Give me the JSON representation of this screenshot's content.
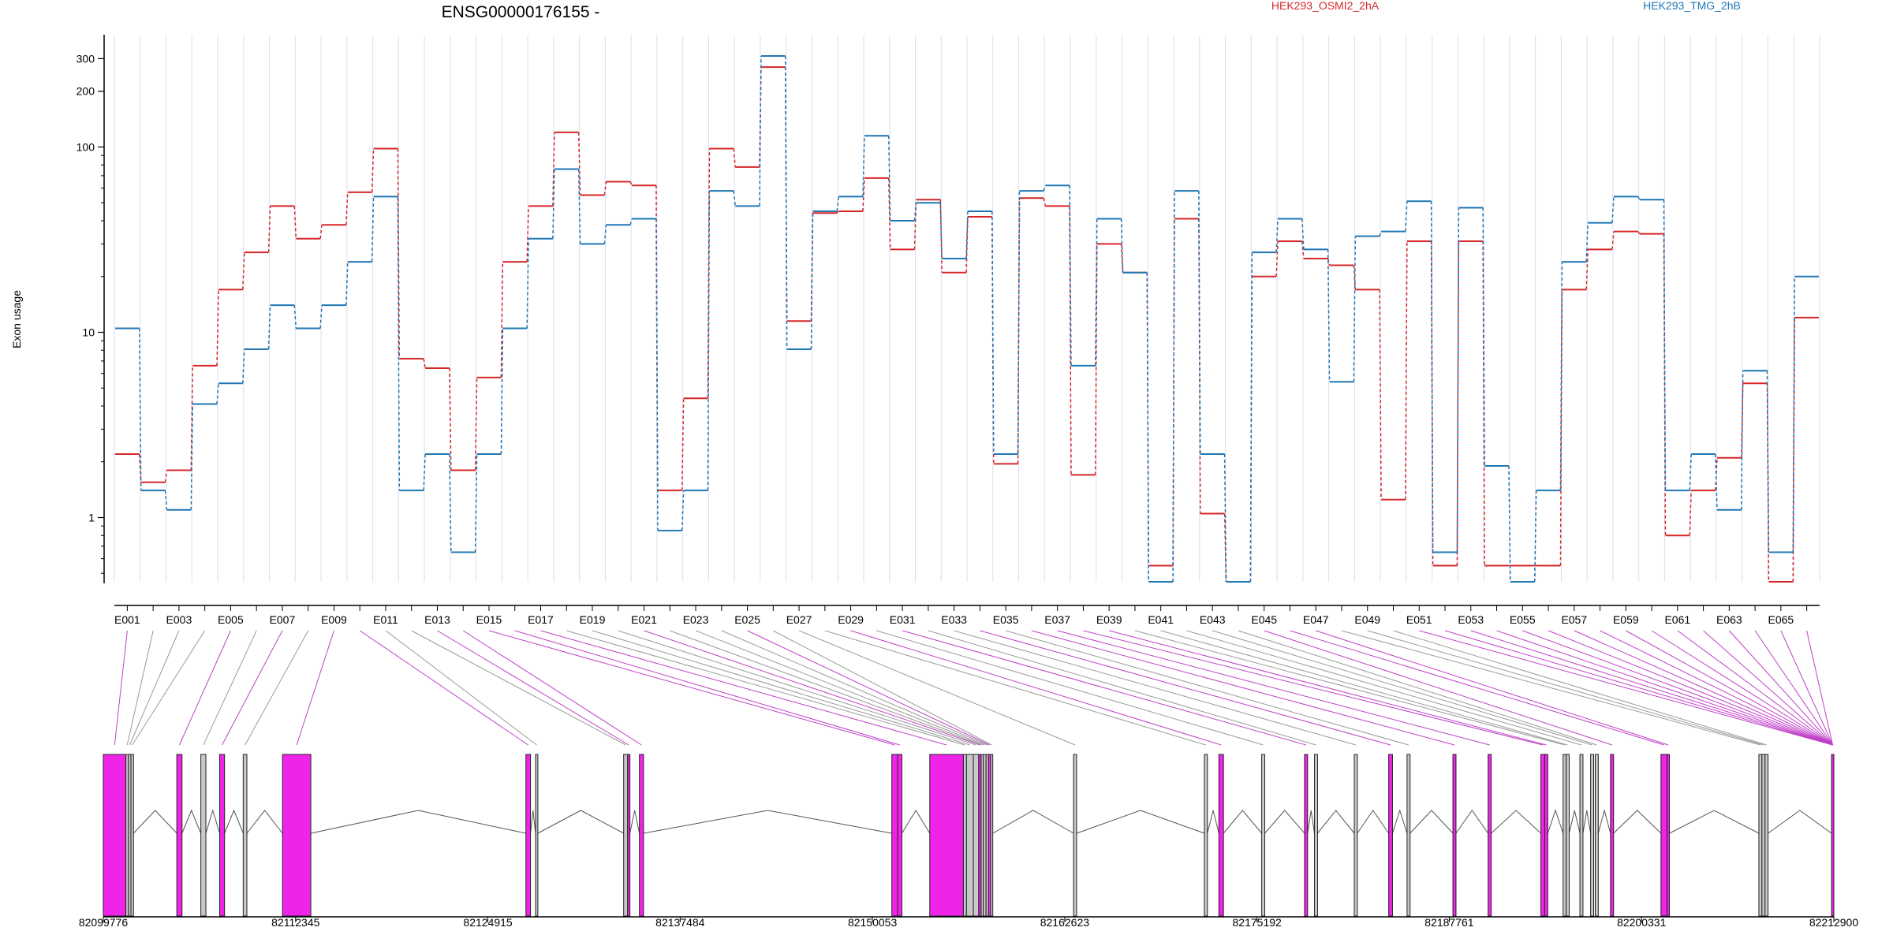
{
  "title": "ENSG00000176155 -",
  "ylabel": "Exon usage",
  "chart_data": {
    "type": "line",
    "title": "ENSG00000176155 -",
    "ylabel": "Exon usage",
    "yscale": "log",
    "ylim": [
      0.45,
      400
    ],
    "yticks": [
      1,
      10,
      100,
      200,
      300
    ],
    "legend_placement": "top",
    "x_tick_labels": [
      "E001",
      "E003",
      "E005",
      "E007",
      "E009",
      "E011",
      "E013",
      "E015",
      "E017",
      "E019",
      "E021",
      "E023",
      "E025",
      "E027",
      "E029",
      "E031",
      "E033",
      "E035",
      "E037",
      "E039",
      "E041",
      "E043",
      "E045",
      "E047",
      "E049",
      "E051",
      "E053",
      "E055",
      "E057",
      "E059",
      "E061",
      "E063",
      "E065"
    ],
    "series": [
      {
        "name": "HEK293_OSMI2_2hA",
        "color": "#d62728",
        "values": [
          2.2,
          1.55,
          1.8,
          6.6,
          17,
          27,
          48,
          32,
          38,
          57,
          98,
          7.2,
          6.4,
          1.8,
          5.7,
          24,
          48,
          120,
          55,
          65,
          62,
          1.4,
          4.4,
          98,
          78,
          270,
          11.5,
          44,
          45,
          68,
          28,
          52,
          21,
          42,
          1.95,
          53,
          48,
          1.7,
          30,
          21,
          0.55,
          41,
          1.05,
          0.45,
          20,
          31,
          25,
          23,
          17,
          1.25,
          31,
          0.55,
          31,
          0.55,
          0.55,
          0.55,
          17,
          28,
          35,
          34,
          0.8,
          1.4,
          2.1,
          5.3,
          0.45,
          12
        ]
      },
      {
        "name": "HEK293_TMG_2hB",
        "color": "#1f77b4",
        "values": [
          10.5,
          1.4,
          1.1,
          4.1,
          5.3,
          8.1,
          14,
          10.5,
          14,
          24,
          54,
          1.4,
          2.2,
          0.65,
          2.2,
          10.5,
          32,
          76,
          30,
          38,
          41,
          0.85,
          1.4,
          58,
          48,
          310,
          8.1,
          45,
          54,
          115,
          40,
          50,
          25,
          45,
          2.2,
          58,
          62,
          6.6,
          41,
          21,
          0.45,
          58,
          2.2,
          0.45,
          27,
          41,
          28,
          5.4,
          33,
          35,
          51,
          0.65,
          47,
          1.9,
          0.45,
          1.4,
          24,
          39,
          54,
          52,
          1.4,
          2.2,
          1.1,
          6.2,
          0.65,
          20
        ]
      }
    ],
    "gene_model": {
      "x_tick_labels": [
        "82099776",
        "82112345",
        "82124915",
        "82137484",
        "82150053",
        "82162623",
        "82175192",
        "82187761",
        "82200331",
        "82212900"
      ],
      "xlim": [
        82099776,
        82212900
      ],
      "exon_bins": [
        {
          "start": 82099776,
          "end": 82101250,
          "highlight": true
        },
        {
          "start": 82101250,
          "end": 82101420,
          "highlight": false
        },
        {
          "start": 82101420,
          "end": 82101580,
          "highlight": false
        },
        {
          "start": 82101580,
          "end": 82101750,
          "highlight": false
        },
        {
          "start": 82104580,
          "end": 82104920,
          "highlight": true
        },
        {
          "start": 82106150,
          "end": 82106480,
          "highlight": false
        },
        {
          "start": 82107380,
          "end": 82107700,
          "highlight": true
        },
        {
          "start": 82108920,
          "end": 82109160,
          "highlight": false
        },
        {
          "start": 82111490,
          "end": 82113340,
          "highlight": true
        },
        {
          "start": 82127400,
          "end": 82127700,
          "highlight": true
        },
        {
          "start": 82128030,
          "end": 82128180,
          "highlight": false
        },
        {
          "start": 82133790,
          "end": 82134050,
          "highlight": false
        },
        {
          "start": 82134050,
          "end": 82134200,
          "highlight": true
        },
        {
          "start": 82134820,
          "end": 82135090,
          "highlight": true
        },
        {
          "start": 82151320,
          "end": 82151700,
          "highlight": true
        },
        {
          "start": 82151700,
          "end": 82151980,
          "highlight": true
        },
        {
          "start": 82153800,
          "end": 82156000,
          "highlight": true
        },
        {
          "start": 82156000,
          "end": 82156200,
          "highlight": false
        },
        {
          "start": 82156200,
          "end": 82156650,
          "highlight": false
        },
        {
          "start": 82156650,
          "end": 82157000,
          "highlight": false
        },
        {
          "start": 82157000,
          "end": 82157160,
          "highlight": true
        },
        {
          "start": 82157160,
          "end": 82157300,
          "highlight": false
        },
        {
          "start": 82157300,
          "end": 82157480,
          "highlight": false
        },
        {
          "start": 82157480,
          "end": 82157640,
          "highlight": false
        },
        {
          "start": 82157640,
          "end": 82157780,
          "highlight": true
        },
        {
          "start": 82157780,
          "end": 82157920,
          "highlight": false
        },
        {
          "start": 82163200,
          "end": 82163400,
          "highlight": false
        },
        {
          "start": 82171750,
          "end": 82171950,
          "highlight": false
        },
        {
          "start": 82172700,
          "end": 82173000,
          "highlight": true
        },
        {
          "start": 82175500,
          "end": 82175700,
          "highlight": false
        },
        {
          "start": 82178300,
          "end": 82178500,
          "highlight": true
        },
        {
          "start": 82178950,
          "end": 82179150,
          "highlight": false
        },
        {
          "start": 82181550,
          "end": 82181750,
          "highlight": false
        },
        {
          "start": 82183800,
          "end": 82184050,
          "highlight": true
        },
        {
          "start": 82185000,
          "end": 82185200,
          "highlight": false
        },
        {
          "start": 82188000,
          "end": 82188200,
          "highlight": true
        },
        {
          "start": 82190300,
          "end": 82190500,
          "highlight": true
        },
        {
          "start": 82193750,
          "end": 82194000,
          "highlight": true
        },
        {
          "start": 82194000,
          "end": 82194200,
          "highlight": true
        },
        {
          "start": 82195200,
          "end": 82195400,
          "highlight": false
        },
        {
          "start": 82195400,
          "end": 82195600,
          "highlight": false
        },
        {
          "start": 82196300,
          "end": 82196500,
          "highlight": false
        },
        {
          "start": 82197000,
          "end": 82197200,
          "highlight": false
        },
        {
          "start": 82197300,
          "end": 82197500,
          "highlight": false
        },
        {
          "start": 82198300,
          "end": 82198500,
          "highlight": true
        },
        {
          "start": 82201600,
          "end": 82202000,
          "highlight": true
        },
        {
          "start": 82202000,
          "end": 82202150,
          "highlight": true
        },
        {
          "start": 82208000,
          "end": 82208200,
          "highlight": false
        },
        {
          "start": 82208200,
          "end": 82208400,
          "highlight": false
        },
        {
          "start": 82208400,
          "end": 82208600,
          "highlight": false
        },
        {
          "start": 82212750,
          "end": 82212900,
          "highlight": true
        }
      ]
    }
  }
}
